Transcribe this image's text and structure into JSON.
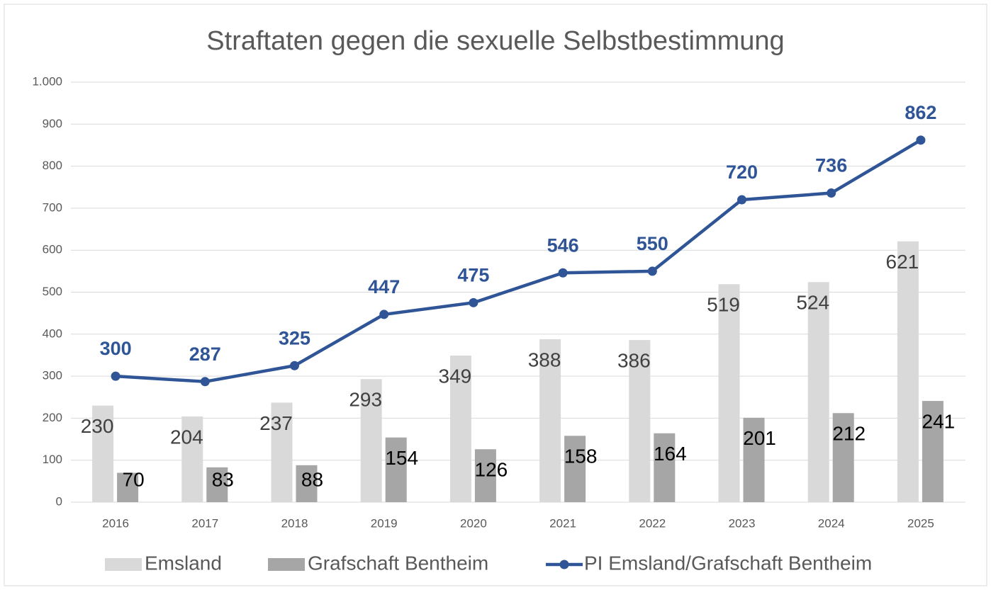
{
  "chart_data": {
    "type": "bar-line",
    "title": "Straftaten gegen die sexuelle Selbstbestimmung",
    "categories": [
      "2016",
      "2017",
      "2018",
      "2019",
      "2020",
      "2021",
      "2022",
      "2023",
      "2024",
      "2025"
    ],
    "series": [
      {
        "name": "Emsland",
        "type": "bar",
        "color": "#d9d9d9",
        "values": [
          230,
          204,
          237,
          293,
          349,
          388,
          386,
          519,
          524,
          621
        ]
      },
      {
        "name": "Grafschaft Bentheim",
        "type": "bar",
        "color": "#a6a6a6",
        "values": [
          70,
          83,
          88,
          154,
          126,
          158,
          164,
          201,
          212,
          241
        ]
      },
      {
        "name": "PI Emsland/Grafschaft Bentheim",
        "type": "line",
        "color": "#2f5597",
        "values": [
          300,
          287,
          325,
          447,
          475,
          546,
          550,
          720,
          736,
          862
        ]
      }
    ],
    "ylim": [
      0,
      1000
    ],
    "yticks": [
      0,
      100,
      200,
      300,
      400,
      500,
      600,
      700,
      800,
      900,
      {
        "value": 1000,
        "label": "1.000"
      }
    ],
    "grid": true,
    "legend": "bottom"
  }
}
